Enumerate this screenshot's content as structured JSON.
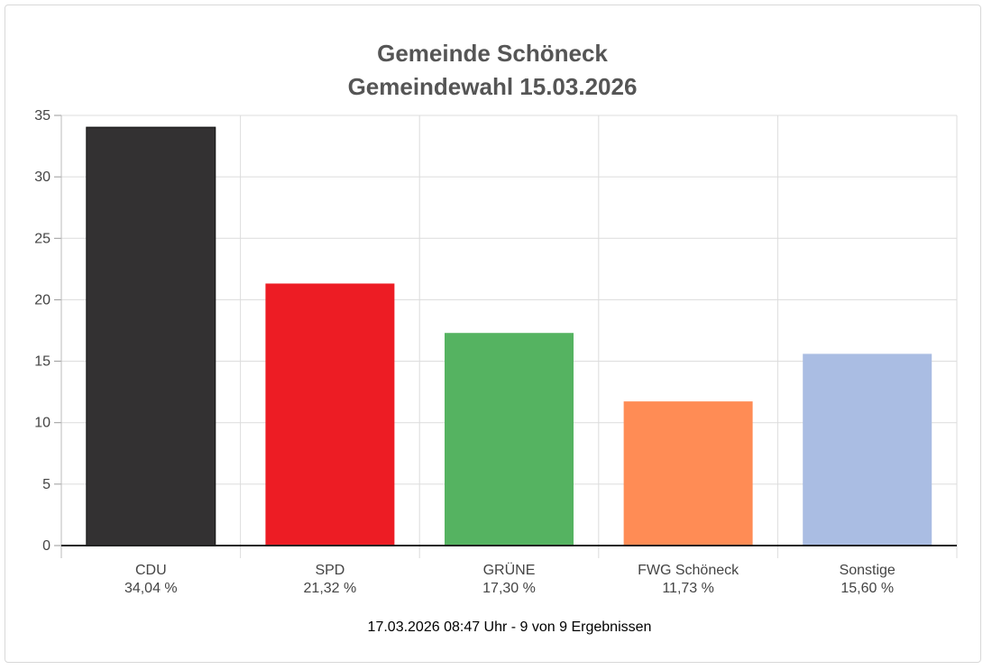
{
  "chart_data": {
    "type": "bar",
    "title": [
      "Gemeinde Schöneck",
      "Gemeindewahl 15.03.2026"
    ],
    "categories": [
      "CDU",
      "SPD",
      "GRÜNE",
      "FWG Schöneck",
      "Sonstige"
    ],
    "values": [
      34.04,
      21.32,
      17.3,
      11.73,
      15.6
    ],
    "value_labels": [
      "34,04 %",
      "21,32 %",
      "17,30 %",
      "11,73 %",
      "15,60 %"
    ],
    "colors": [
      "#333132",
      "#ed1c24",
      "#55b361",
      "#ff8c55",
      "#aabde3"
    ],
    "ylim": [
      0,
      35
    ],
    "yticks": [
      0,
      5,
      10,
      15,
      20,
      25,
      30,
      35
    ],
    "grid": true,
    "xlabel": "",
    "ylabel": "",
    "footer": "17.03.2026 08:47 Uhr - 9 von 9 Ergebnissen"
  }
}
